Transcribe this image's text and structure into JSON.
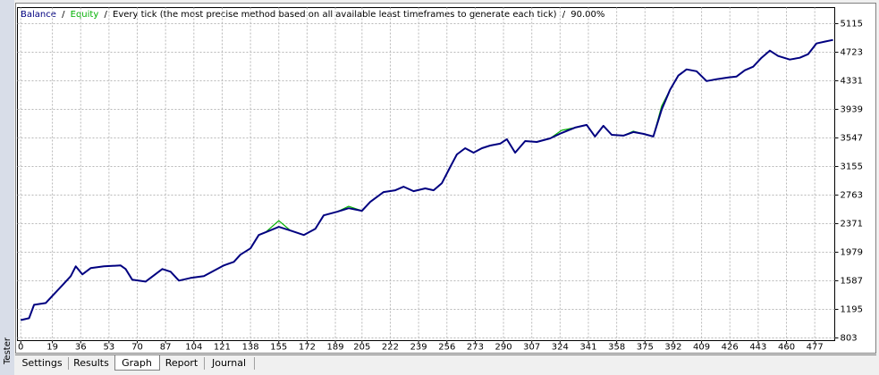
{
  "panel_title": "Tester",
  "tabs": [
    "Settings",
    "Results",
    "Graph",
    "Report",
    "Journal"
  ],
  "chart_data": {
    "type": "line",
    "separator": "/",
    "subtitle": "Every tick (the most precise method based on all available least timeframes to generate each tick)",
    "quality": "90.00%",
    "x": [
      0,
      5,
      8,
      15,
      20,
      25,
      30,
      33,
      37,
      42,
      50,
      60,
      63,
      67,
      75,
      85,
      90,
      95,
      102,
      110,
      117,
      122,
      128,
      132,
      138,
      143,
      147,
      155,
      162,
      170,
      177,
      182,
      190,
      197,
      205,
      210,
      218,
      225,
      230,
      236,
      243,
      248,
      253,
      258,
      262,
      267,
      272,
      277,
      282,
      288,
      292,
      297,
      303,
      310,
      318,
      325,
      333,
      340,
      345,
      350,
      355,
      362,
      368,
      374,
      380,
      385,
      390,
      395,
      400,
      406,
      412,
      418,
      425,
      430,
      435,
      440,
      445,
      450,
      455,
      462,
      468,
      473,
      478,
      483,
      488
    ],
    "series": [
      {
        "name": "Equity",
        "color": "#00b000",
        "values": [
          1048,
          1073,
          1257,
          1282,
          1405,
          1527,
          1650,
          1785,
          1675,
          1761,
          1785,
          1798,
          1748,
          1601,
          1576,
          1748,
          1712,
          1589,
          1626,
          1650,
          1736,
          1798,
          1847,
          1945,
          2031,
          2215,
          2252,
          2411,
          2276,
          2215,
          2301,
          2485,
          2534,
          2608,
          2547,
          2669,
          2804,
          2829,
          2878,
          2817,
          2854,
          2829,
          2927,
          3148,
          3320,
          3406,
          3345,
          3406,
          3443,
          3468,
          3529,
          3345,
          3504,
          3492,
          3541,
          3652,
          3689,
          3725,
          3566,
          3713,
          3590,
          3578,
          3640,
          3603,
          3566,
          3983,
          4204,
          4401,
          4487,
          4462,
          4327,
          4352,
          4376,
          4389,
          4475,
          4524,
          4647,
          4745,
          4671,
          4622,
          4647,
          4696,
          4843,
          4868,
          4892
        ]
      },
      {
        "name": "Balance",
        "color": "#000080",
        "values": [
          1048,
          1073,
          1257,
          1282,
          1405,
          1527,
          1650,
          1785,
          1675,
          1761,
          1785,
          1798,
          1748,
          1601,
          1576,
          1748,
          1712,
          1589,
          1626,
          1650,
          1736,
          1798,
          1847,
          1945,
          2031,
          2215,
          2252,
          2326,
          2276,
          2215,
          2301,
          2485,
          2534,
          2583,
          2547,
          2669,
          2804,
          2829,
          2878,
          2817,
          2854,
          2829,
          2927,
          3148,
          3320,
          3406,
          3345,
          3406,
          3443,
          3468,
          3529,
          3345,
          3504,
          3492,
          3541,
          3615,
          3689,
          3725,
          3566,
          3713,
          3590,
          3578,
          3627,
          3603,
          3566,
          3934,
          4204,
          4401,
          4487,
          4462,
          4327,
          4352,
          4376,
          4389,
          4475,
          4524,
          4647,
          4745,
          4671,
          4622,
          4647,
          4696,
          4843,
          4868,
          4892
        ]
      }
    ],
    "xlim": [
      -2,
      489
    ],
    "xticks": [
      0,
      19,
      36,
      53,
      70,
      87,
      104,
      121,
      138,
      155,
      172,
      189,
      205,
      222,
      239,
      256,
      273,
      290,
      307,
      324,
      341,
      358,
      375,
      392,
      409,
      426,
      443,
      460,
      477
    ],
    "ylim": [
      766,
      5335
    ],
    "yticks": [
      803,
      1195,
      1587,
      1979,
      2371,
      2763,
      3155,
      3547,
      3939,
      4331,
      4723,
      5115
    ],
    "grid": true
  }
}
